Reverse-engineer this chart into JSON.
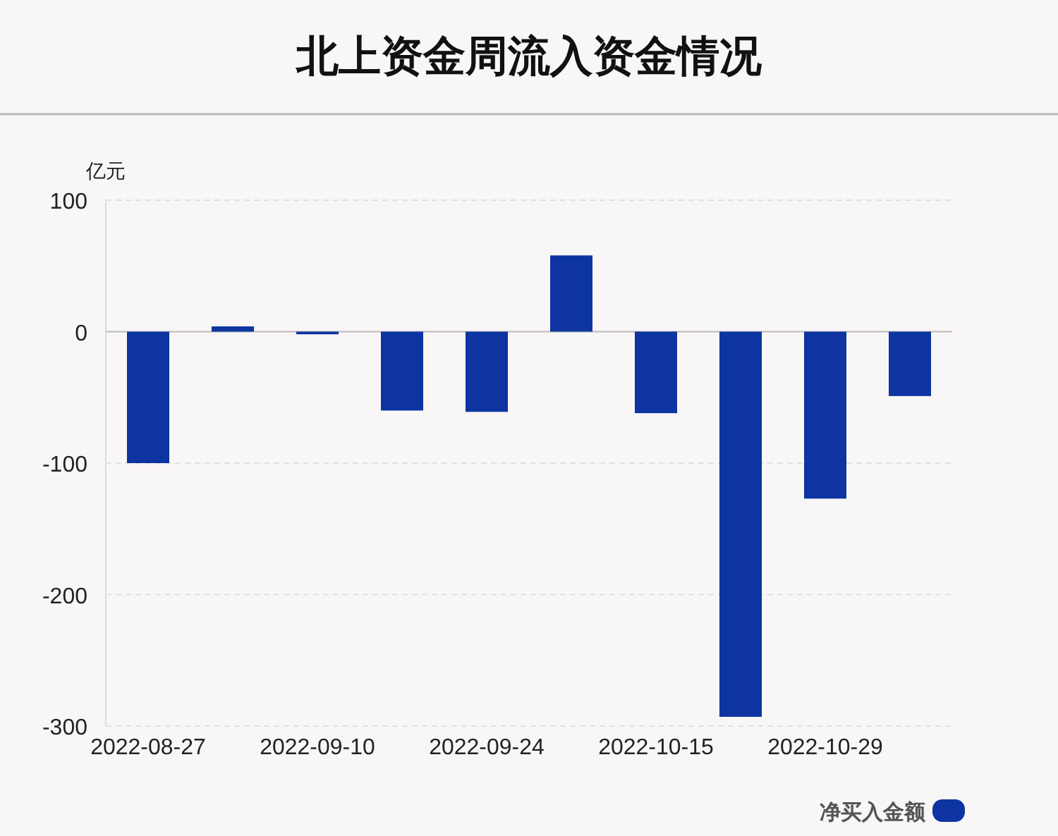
{
  "chart_data": {
    "type": "bar",
    "title": "北上资金周流入资金情况",
    "ylabel": "亿元",
    "categories": [
      "2022-08-27",
      null,
      "2022-09-10",
      null,
      "2022-09-24",
      null,
      "2022-10-15",
      null,
      "2022-10-29",
      null
    ],
    "series": [
      {
        "name": "净买入金额",
        "color": "#0d34a0",
        "values": [
          -100,
          4,
          -2,
          -60,
          -61,
          58,
          -62,
          -293,
          -127,
          -49
        ]
      }
    ],
    "ylim": [
      -300,
      100
    ],
    "yticks": [
      -300,
      -200,
      -100,
      0,
      100
    ],
    "grid": "y",
    "legend": "bottom right"
  }
}
